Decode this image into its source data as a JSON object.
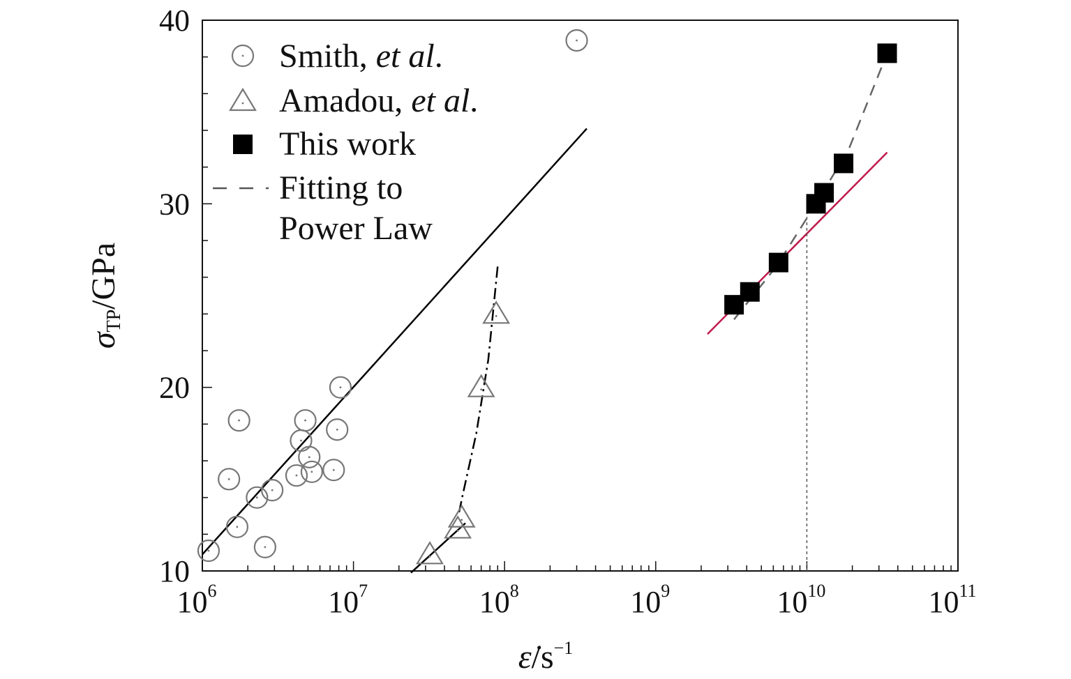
{
  "chart_data": {
    "type": "scatter",
    "xscale": "log",
    "xlim": [
      1000000,
      100000000000
    ],
    "ylim": [
      10,
      40
    ],
    "grid": false,
    "legend_position": "top-left",
    "x_tick_labels": [
      {
        "base": "10",
        "exp": "6"
      },
      {
        "base": "10",
        "exp": "7"
      },
      {
        "base": "10",
        "exp": "8"
      },
      {
        "base": "10",
        "exp": "9"
      },
      {
        "base": "10",
        "exp": "10"
      },
      {
        "base": "10",
        "exp": "11"
      }
    ],
    "x_tick_values": [
      1000000,
      10000000,
      100000000,
      1000000000,
      10000000000,
      100000000000
    ],
    "y_tick_labels": [
      "10",
      "20",
      "30",
      "40"
    ],
    "y_tick_values": [
      10,
      20,
      30,
      40
    ],
    "xlabel": {
      "symbol": "ε̇",
      "unit": "/s",
      "exp": "−1"
    },
    "ylabel": {
      "symbol": "σ",
      "sub": "TP",
      "unit": "/GPa"
    },
    "legend": [
      {
        "marker": "circle",
        "text": "Smith, ",
        "italic": "et al",
        "suffix": "."
      },
      {
        "marker": "triangle",
        "text": "Amadou, ",
        "italic": "et al",
        "suffix": "."
      },
      {
        "marker": "square",
        "text": "This work",
        "italic": "",
        "suffix": ""
      },
      {
        "marker": "dash",
        "text": "Fitting to",
        "italic": "",
        "suffix": ""
      },
      {
        "marker": "none",
        "text": "Power Law",
        "italic": "",
        "suffix": ""
      }
    ],
    "series": [
      {
        "name": "Smith, et al.",
        "marker": "circle",
        "color": "#777777",
        "points": [
          [
            1100000,
            11.1
          ],
          [
            1500000,
            15.0
          ],
          [
            1700000,
            12.4
          ],
          [
            1750000,
            18.2
          ],
          [
            2300000,
            14.0
          ],
          [
            2600000,
            11.3
          ],
          [
            2900000,
            14.4
          ],
          [
            4200000,
            15.2
          ],
          [
            4500000,
            17.1
          ],
          [
            4800000,
            18.2
          ],
          [
            5100000,
            16.2
          ],
          [
            5300000,
            15.4
          ],
          [
            7400000,
            15.5
          ],
          [
            7800000,
            17.7
          ],
          [
            8200000,
            20.0
          ],
          [
            300000000,
            38.9
          ]
        ]
      },
      {
        "name": "Amadou, et al.",
        "marker": "triangle",
        "color": "#777777",
        "points": [
          [
            32000000,
            10.9
          ],
          [
            49000000,
            12.3
          ],
          [
            52000000,
            12.9
          ],
          [
            70000000,
            20.0
          ],
          [
            88000000,
            24.0
          ]
        ]
      },
      {
        "name": "This work",
        "marker": "square",
        "color": "#000000",
        "points": [
          [
            3300000000,
            24.5
          ],
          [
            4200000000,
            25.2
          ],
          [
            6500000000,
            26.8
          ],
          [
            11500000000,
            30.0
          ],
          [
            13000000000,
            30.6
          ],
          [
            17500000000,
            32.2
          ],
          [
            34000000000,
            38.2
          ]
        ]
      }
    ],
    "lines": [
      {
        "style": "solid",
        "color": "#000000",
        "points": [
          [
            1000000,
            10.9
          ],
          [
            350000000,
            34.1
          ]
        ]
      },
      {
        "style": "solid",
        "color": "#000000",
        "points": [
          [
            24000000,
            9.9
          ],
          [
            55000000,
            12.6
          ]
        ]
      },
      {
        "style": "dashdot",
        "color": "#000000",
        "points": [
          [
            50000000,
            13.2
          ],
          [
            53000000,
            14.2
          ],
          [
            65000000,
            17.5
          ],
          [
            78000000,
            21.5
          ],
          [
            90000000,
            26.6
          ]
        ]
      },
      {
        "style": "solid",
        "color": "#c0184a",
        "points": [
          [
            2200000000,
            22.9
          ],
          [
            34000000000,
            32.8
          ]
        ]
      },
      {
        "style": "dashed",
        "color": "#666666",
        "points": [
          [
            3300000000,
            23.7
          ],
          [
            6300000000,
            26.6
          ],
          [
            11500000000,
            30.0
          ],
          [
            19000000000,
            33.0
          ],
          [
            34000000000,
            38.2
          ]
        ]
      },
      {
        "style": "dotted",
        "color": "#555555",
        "points": [
          [
            10000000000,
            10.0
          ],
          [
            10000000000,
            30.0
          ]
        ]
      }
    ]
  }
}
